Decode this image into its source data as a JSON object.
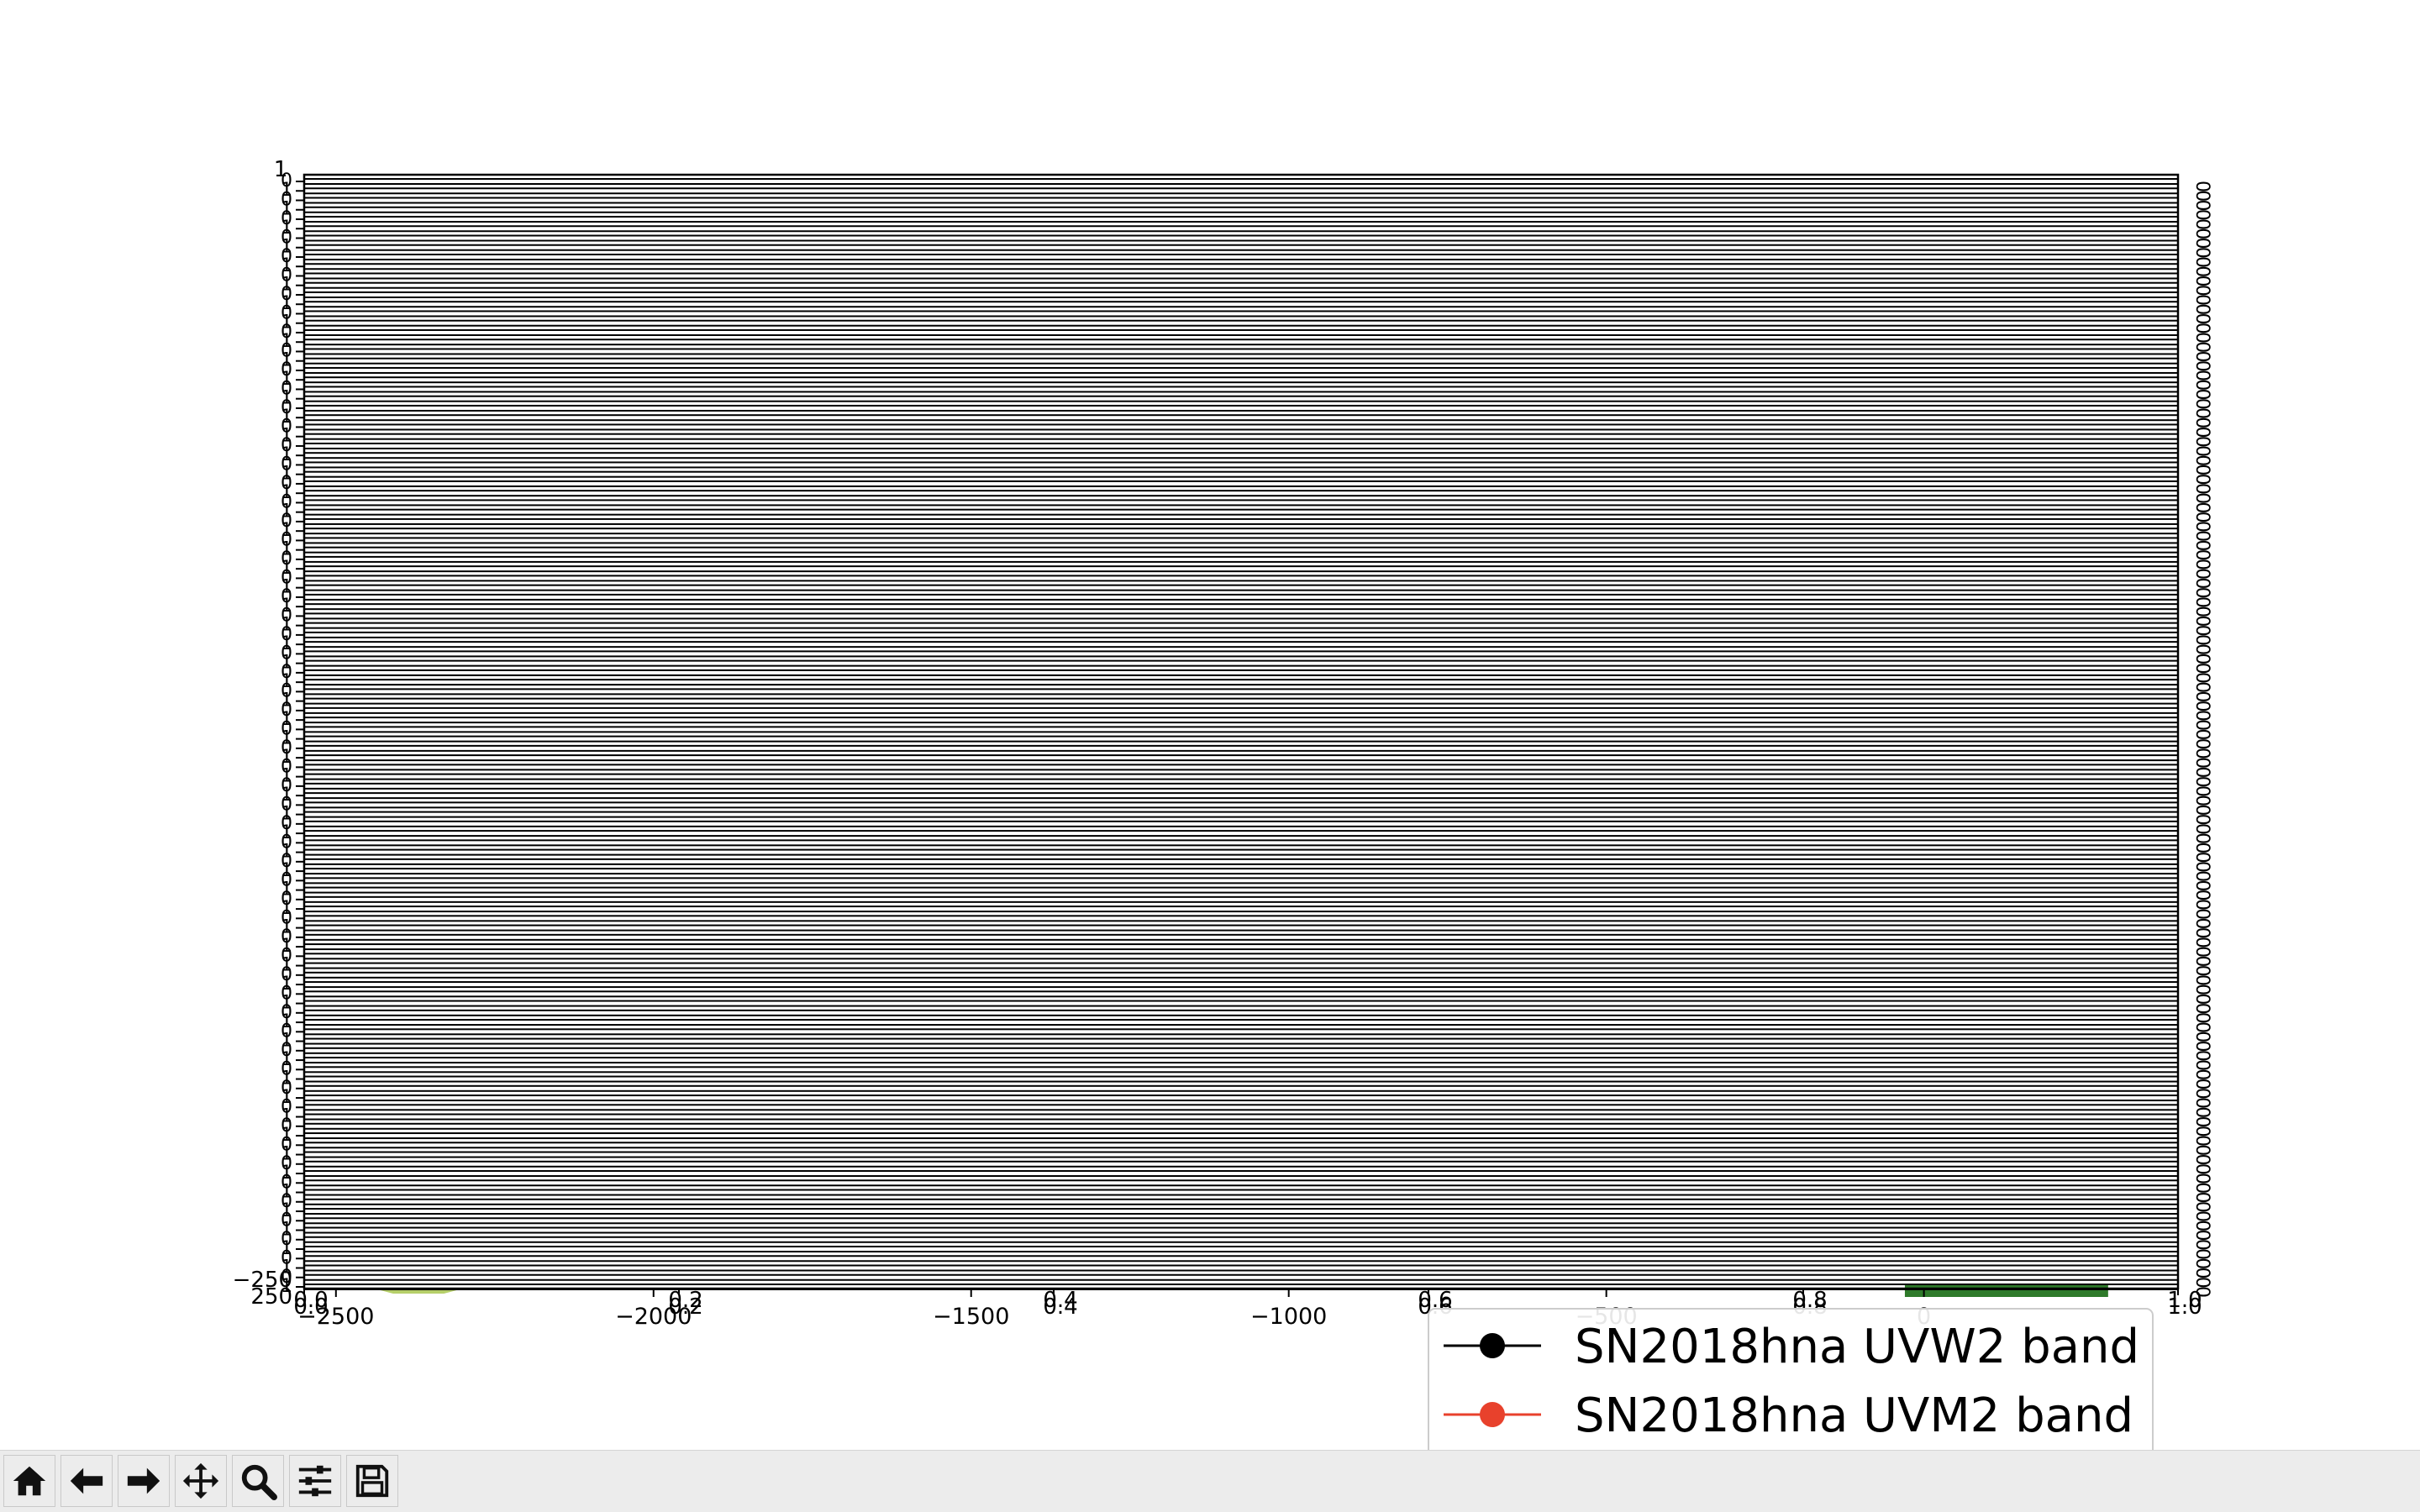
{
  "chart_data": {
    "type": "line",
    "title": "",
    "xlabel": "",
    "ylabel": "",
    "xlim": [
      -2550,
      400
    ],
    "xticks": [
      -2500,
      -2000,
      -1500,
      -1000,
      -500,
      0
    ],
    "ylim": [
      -250,
      1
    ],
    "series": [
      {
        "name": "SN2018hna UVW2 band",
        "color": "#000000",
        "marker": "circle",
        "x": [],
        "y": []
      },
      {
        "name": "SN2018hna UVM2 band",
        "color": "#e8412c",
        "marker": "circle",
        "x": [],
        "y": []
      }
    ],
    "inset_axis": {
      "xlim": [
        0.0,
        1.0
      ],
      "xticks": [
        "0.0",
        "0.2",
        "0.4",
        "0.6",
        "0.8",
        "1.0"
      ],
      "yticks": [
        "0",
        "1"
      ],
      "count": 118
    },
    "bottom_y_labels": [
      "−250",
      "250"
    ],
    "top_y_label": "1",
    "right_y_label": "0",
    "decorations": {
      "left_patch_color": "#b6cf6a",
      "right_patch_color": "#2e7a2a"
    },
    "legend": {
      "placement": "lower-right"
    }
  },
  "toolbar": {
    "buttons": [
      {
        "name": "home",
        "icon": "home-icon"
      },
      {
        "name": "back",
        "icon": "arrow-left-icon"
      },
      {
        "name": "forward",
        "icon": "arrow-right-icon"
      },
      {
        "name": "pan",
        "icon": "move-icon"
      },
      {
        "name": "zoom",
        "icon": "zoom-icon"
      },
      {
        "name": "configure",
        "icon": "sliders-icon"
      },
      {
        "name": "save",
        "icon": "save-icon"
      }
    ]
  }
}
